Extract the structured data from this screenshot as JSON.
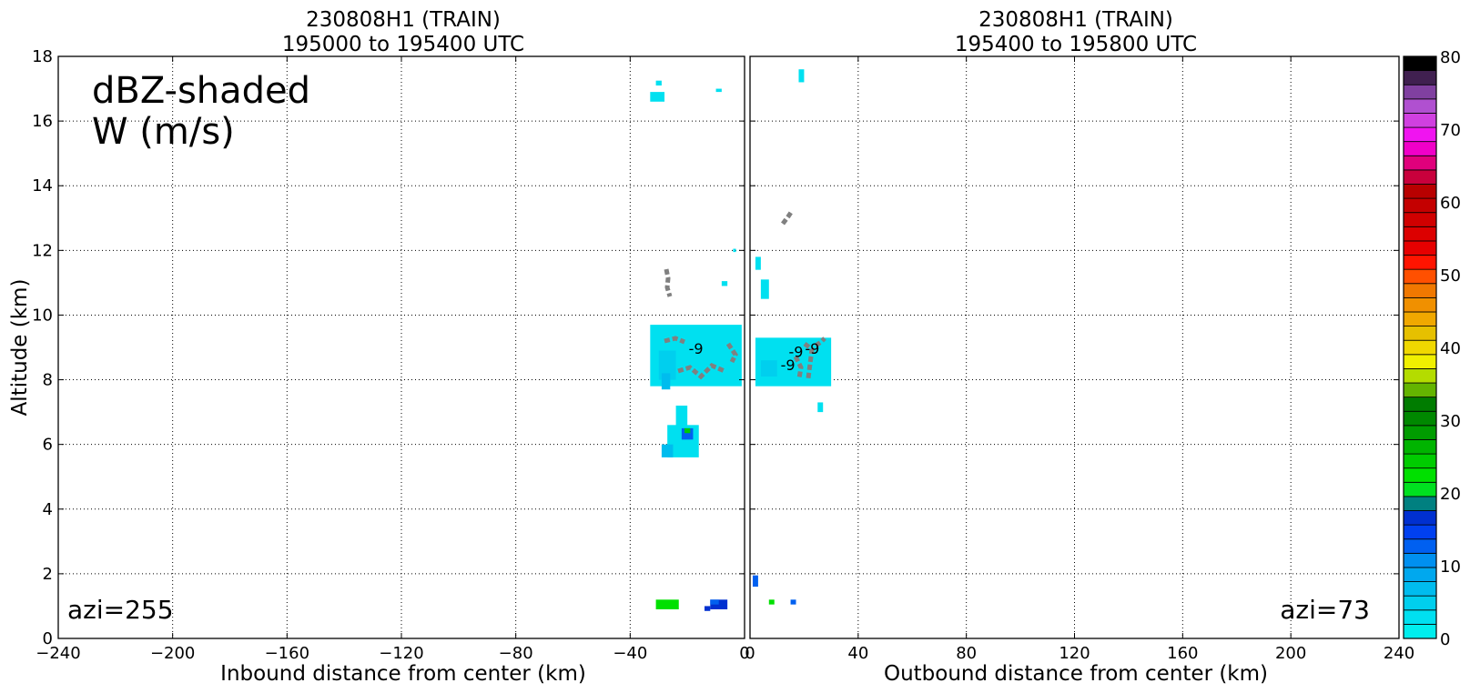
{
  "figure": {
    "left_panel": {
      "title_line1": "230808H1 (TRAIN)",
      "title_line2": "195000 to 195400 UTC",
      "legend_line1": "dBZ-shaded",
      "legend_line2": "W (m/s)",
      "azimuth_label": "azi=255"
    },
    "right_panel": {
      "title_line1": "230808H1 (TRAIN)",
      "title_line2": "195400 to 195800 UTC",
      "azimuth_label": "azi=73"
    }
  },
  "chart_data": [
    {
      "type": "heatmap",
      "title": "230808H1 (TRAIN) 195000 to 195400 UTC",
      "xlabel": "Inbound distance from center (km)",
      "ylabel": "Altitude (km)",
      "xlim": [
        -240,
        0
      ],
      "ylim": [
        0,
        18
      ],
      "xticks": [
        -240,
        -200,
        -160,
        -120,
        -80,
        -40,
        0
      ],
      "yticks": [
        0,
        2,
        4,
        6,
        8,
        10,
        12,
        14,
        16,
        18
      ],
      "grid": true,
      "annotations": [
        "dBZ-shaded",
        "W (m/s)",
        "azi=255"
      ],
      "echoes_dbz": [
        {
          "x": [
            -33,
            -28
          ],
          "y": [
            16.6,
            16.9
          ],
          "dbz": 2
        },
        {
          "x": [
            -31,
            -29
          ],
          "y": [
            17.1,
            17.25
          ],
          "dbz": 2
        },
        {
          "x": [
            -10,
            -8
          ],
          "y": [
            16.9,
            17.0
          ],
          "dbz": 2
        },
        {
          "x": [
            -8,
            -6
          ],
          "y": [
            10.9,
            11.05
          ],
          "dbz": 2
        },
        {
          "x": [
            -4,
            -3
          ],
          "y": [
            11.95,
            12.05
          ],
          "dbz": 2
        },
        {
          "x": [
            -33,
            -1
          ],
          "y": [
            7.8,
            9.7
          ],
          "dbz": 2
        },
        {
          "x": [
            -30,
            -24
          ],
          "y": [
            8.0,
            8.9
          ],
          "dbz": 4
        },
        {
          "x": [
            -29,
            -26
          ],
          "y": [
            7.7,
            8.2
          ],
          "dbz": 6
        },
        {
          "x": [
            -27,
            -16
          ],
          "y": [
            5.6,
            6.6
          ],
          "dbz": 2
        },
        {
          "x": [
            -24,
            -20
          ],
          "y": [
            6.3,
            7.2
          ],
          "dbz": 2
        },
        {
          "x": [
            -29,
            -25
          ],
          "y": [
            5.6,
            6.0
          ],
          "dbz": 6
        },
        {
          "x": [
            -22,
            -18
          ],
          "y": [
            6.15,
            6.5
          ],
          "dbz": 12
        },
        {
          "x": [
            -21,
            -19
          ],
          "y": [
            6.35,
            6.5
          ],
          "dbz": 25
        },
        {
          "x": [
            -31,
            -23
          ],
          "y": [
            0.9,
            1.2
          ],
          "dbz": 23
        },
        {
          "x": [
            -14,
            -12
          ],
          "y": [
            0.85,
            1.0
          ],
          "dbz": 16
        },
        {
          "x": [
            -12,
            -6
          ],
          "y": [
            0.9,
            1.2
          ],
          "dbz": 16
        },
        {
          "x": [
            -12,
            -9
          ],
          "y": [
            1.05,
            1.2
          ],
          "dbz": 12
        }
      ],
      "w_contour_labels": [
        {
          "x": -17,
          "y": 8.8,
          "text": "-9"
        }
      ]
    },
    {
      "type": "heatmap",
      "title": "230808H1 (TRAIN) 195400 to 195800 UTC",
      "xlabel": "Outbound distance from center (km)",
      "ylabel": "",
      "xlim": [
        0,
        240
      ],
      "ylim": [
        0,
        18
      ],
      "xticks": [
        0,
        40,
        80,
        120,
        160,
        200,
        240
      ],
      "yticks": [
        0,
        2,
        4,
        6,
        8,
        10,
        12,
        14,
        16,
        18
      ],
      "grid": true,
      "annotations": [
        "azi=73"
      ],
      "echoes_dbz": [
        {
          "x": [
            18,
            20
          ],
          "y": [
            17.2,
            17.6
          ],
          "dbz": 2
        },
        {
          "x": [
            2,
            4
          ],
          "y": [
            11.4,
            11.8
          ],
          "dbz": 2
        },
        {
          "x": [
            4,
            7
          ],
          "y": [
            10.5,
            11.1
          ],
          "dbz": 2
        },
        {
          "x": [
            2,
            30
          ],
          "y": [
            7.8,
            9.3
          ],
          "dbz": 2
        },
        {
          "x": [
            4,
            10
          ],
          "y": [
            8.1,
            8.6
          ],
          "dbz": 4
        },
        {
          "x": [
            25,
            27
          ],
          "y": [
            7.0,
            7.3
          ],
          "dbz": 2
        },
        {
          "x": [
            1,
            3
          ],
          "y": [
            1.6,
            1.95
          ],
          "dbz": 12
        },
        {
          "x": [
            7,
            9
          ],
          "y": [
            1.05,
            1.2
          ],
          "dbz": 23
        },
        {
          "x": [
            15,
            17
          ],
          "y": [
            1.05,
            1.2
          ],
          "dbz": 12
        }
      ],
      "w_contour_labels": [
        {
          "x": 14,
          "y": 8.3,
          "text": "-9"
        },
        {
          "x": 17,
          "y": 8.7,
          "text": "-9"
        },
        {
          "x": 23,
          "y": 8.8,
          "text": "-9"
        }
      ]
    }
  ],
  "colorbar": {
    "ticks": [
      0,
      10,
      20,
      30,
      40,
      50,
      60,
      70,
      80
    ],
    "vmin": 0,
    "vmax": 80,
    "colors": [
      "#00eeee",
      "#00e0f0",
      "#00cfee",
      "#00bcee",
      "#00a8ee",
      "#0090f0",
      "#0060f0",
      "#0040f0",
      "#0030d0",
      "#008080",
      "#00e020",
      "#00e000",
      "#00cc00",
      "#00b400",
      "#009c00",
      "#008800",
      "#007c00",
      "#64b400",
      "#b4dc00",
      "#f0f000",
      "#f0d800",
      "#e6c000",
      "#f0a800",
      "#f09000",
      "#f07800",
      "#ff5000",
      "#ff1400",
      "#e60000",
      "#dc0000",
      "#d00000",
      "#c40000",
      "#b80000",
      "#c8003c",
      "#e0007c",
      "#f000c8",
      "#f014f0",
      "#d040e0",
      "#b050d0",
      "#8040a0",
      "#402050",
      "#000000"
    ]
  }
}
